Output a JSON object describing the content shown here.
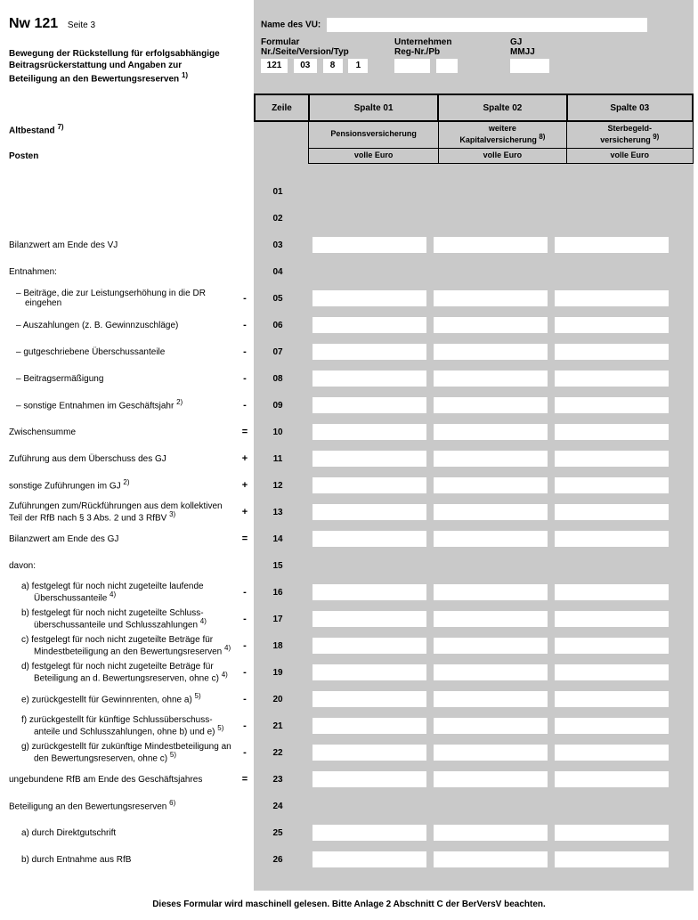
{
  "header": {
    "form_code": "Nw 121",
    "page_label": "Seite 3",
    "subtitle_l1": "Bewegung der Rückstellung für erfolgsabhängige",
    "subtitle_l2": "Beitragsrückerstattung und Angaben zur",
    "subtitle_l3": "Beteiligung an den Bewertungsreserven ",
    "subtitle_sup": "1)"
  },
  "meta": {
    "vu_label": "Name des VU:",
    "col1_l1": "Formular",
    "col1_l2": "Nr./Seite/Version/Typ",
    "col2_l1": "Unternehmen",
    "col2_l2": "Reg-Nr./Pb",
    "col3_l1": "GJ",
    "col3_l2": "MMJJ",
    "v_nr": "121",
    "v_seite": "03",
    "v_ver": "8",
    "v_typ": "1"
  },
  "cols": {
    "zeile": "Zeile",
    "sp01": "Spalte 01",
    "sp02": "Spalte 02",
    "sp03": "Spalte 03",
    "h1": "Pensionsversicherung",
    "h2a": "weitere",
    "h2b": "Kapitalversicherung ",
    "h2sup": "8)",
    "h3a": "Sterbegeld-",
    "h3b": "versicherung ",
    "h3sup": "9)",
    "unit": "volle Euro"
  },
  "side": {
    "altbestand": "Altbestand ",
    "altbestand_sup": "7)",
    "posten": "Posten"
  },
  "rows": [
    {
      "z": "01",
      "label": "",
      "op": "",
      "cells": false
    },
    {
      "z": "02",
      "label": "",
      "op": "",
      "cells": false
    },
    {
      "z": "03",
      "label": "Bilanzwert am Ende des VJ",
      "op": "",
      "cells": true
    },
    {
      "z": "04",
      "label": "Entnahmen:",
      "op": "",
      "cells": false
    },
    {
      "z": "05",
      "label": "– Beiträge, die zur Leistungserhöhung in die DR eingehen",
      "op": "-",
      "cells": true,
      "indent": 1
    },
    {
      "z": "06",
      "label": "– Auszahlungen (z. B. Gewinnzuschläge)",
      "op": "-",
      "cells": true,
      "indent": 1
    },
    {
      "z": "07",
      "label": "– gutgeschriebene Überschussanteile",
      "op": "-",
      "cells": true,
      "indent": 1
    },
    {
      "z": "08",
      "label": "– Beitragsermäßigung",
      "op": "-",
      "cells": true,
      "indent": 1
    },
    {
      "z": "09",
      "label": "– sonstige Entnahmen im Geschäftsjahr ",
      "sup": "2)",
      "op": "-",
      "cells": true,
      "indent": 1
    },
    {
      "z": "10",
      "label": "Zwischensumme",
      "op": "=",
      "cells": true
    },
    {
      "z": "11",
      "label": "Zuführung aus dem Überschuss des GJ",
      "op": "+",
      "cells": true
    },
    {
      "z": "12",
      "label": "sonstige Zuführungen im GJ ",
      "sup": "2)",
      "op": "+",
      "cells": true
    },
    {
      "z": "13",
      "label": "Zuführungen zum/Rückführungen aus dem kollektiven Teil der RfB nach § 3 Abs. 2 und 3 RfBV ",
      "sup": "3)",
      "op": "+",
      "cells": true
    },
    {
      "z": "14",
      "label": "Bilanzwert am Ende des GJ",
      "op": "=",
      "cells": true
    },
    {
      "z": "15",
      "label": "davon:",
      "op": "",
      "cells": false
    },
    {
      "z": "16",
      "label": "a)  festgelegt für noch nicht zugeteilte laufende Überschussanteile ",
      "sup": "4)",
      "op": "-",
      "cells": true,
      "indent": 2
    },
    {
      "z": "17",
      "label": "b)  festgelegt für noch nicht zugeteilte Schluss-überschussanteile und Schlusszahlungen ",
      "sup": "4)",
      "op": "-",
      "cells": true,
      "indent": 2
    },
    {
      "z": "18",
      "label": "c)  festgelegt für noch nicht zugeteilte Beträge für Mindestbeteiligung an den Bewertungsreserven ",
      "sup": "4)",
      "op": "-",
      "cells": true,
      "indent": 2
    },
    {
      "z": "19",
      "label": "d)  festgelegt für noch nicht zugeteilte Beträge für Beteiligung an d. Bewertungsreserven, ohne c) ",
      "sup": "4)",
      "op": "-",
      "cells": true,
      "indent": 2
    },
    {
      "z": "20",
      "label": "e)  zurückgestellt für Gewinnrenten, ohne a) ",
      "sup": "5)",
      "op": "-",
      "cells": true,
      "indent": 2
    },
    {
      "z": "21",
      "label": "f)  zurückgestellt für künftige Schlussüberschuss-anteile und Schlusszahlungen, ohne b) und e) ",
      "sup": "5)",
      "op": "-",
      "cells": true,
      "indent": 2
    },
    {
      "z": "22",
      "label": "g)  zurückgestellt für zukünftige Mindestbeteiligung an den Bewertungsreserven, ohne c) ",
      "sup": "5)",
      "op": "-",
      "cells": true,
      "indent": 2
    },
    {
      "z": "23",
      "label": "ungebundene RfB am Ende des Geschäftsjahres",
      "op": "=",
      "cells": true
    },
    {
      "z": "24",
      "label": "Beteiligung an den Bewertungsreserven ",
      "sup": "6)",
      "op": "",
      "cells": false
    },
    {
      "z": "25",
      "label": "a)  durch Direktgutschrift",
      "op": "",
      "cells": true,
      "indent": 2
    },
    {
      "z": "26",
      "label": "b)  durch Entnahme aus RfB",
      "op": "",
      "cells": true,
      "indent": 2
    }
  ],
  "footer": "Dieses Formular wird maschinell gelesen. Bitte Anlage 2 Abschnitt C der BerVersV beachten."
}
